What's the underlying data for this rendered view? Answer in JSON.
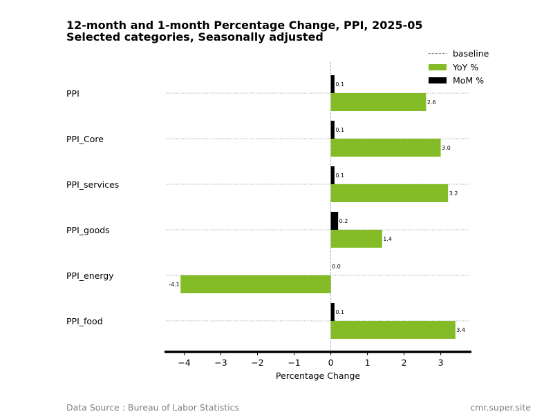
{
  "chart_data": {
    "type": "bar",
    "orientation": "horizontal",
    "title_line1": "12-month and 1-month Percentage Change, PPI, 2025-05",
    "title_line2": "Selected categories, Seasonally adjusted",
    "xlabel": "Percentage Change",
    "categories": [
      "PPI",
      "PPI_Core",
      "PPI_services",
      "PPI_goods",
      "PPI_energy",
      "PPI_food"
    ],
    "series": [
      {
        "name": "YoY %",
        "color": "#84BC27",
        "values": [
          2.6,
          3.0,
          3.2,
          1.4,
          -4.1,
          3.4
        ],
        "labels": [
          "2.6",
          "3.0",
          "3.2",
          "1.4",
          "-4.1",
          "3.4"
        ]
      },
      {
        "name": "MoM %",
        "color": "#000000",
        "values": [
          0.1,
          0.1,
          0.1,
          0.2,
          0.0,
          0.1
        ],
        "labels": [
          "0.1",
          "0.1",
          "0.1",
          "0.2",
          "0.0",
          "0.1"
        ]
      }
    ],
    "baseline_label": "baseline",
    "xlim": [
      -4.5,
      3.8
    ],
    "xticks": [
      -4,
      -3,
      -2,
      -1,
      0,
      1,
      2,
      3
    ],
    "xtick_labels": [
      "−4",
      "−3",
      "−2",
      "−1",
      "0",
      "1",
      "2",
      "3"
    ],
    "legend_position": "top-right",
    "grid": "dotted horizontal lines at categories"
  },
  "footer": {
    "source": "Data Source : Bureau of Labor Statistics",
    "site": "cmr.super.site"
  }
}
